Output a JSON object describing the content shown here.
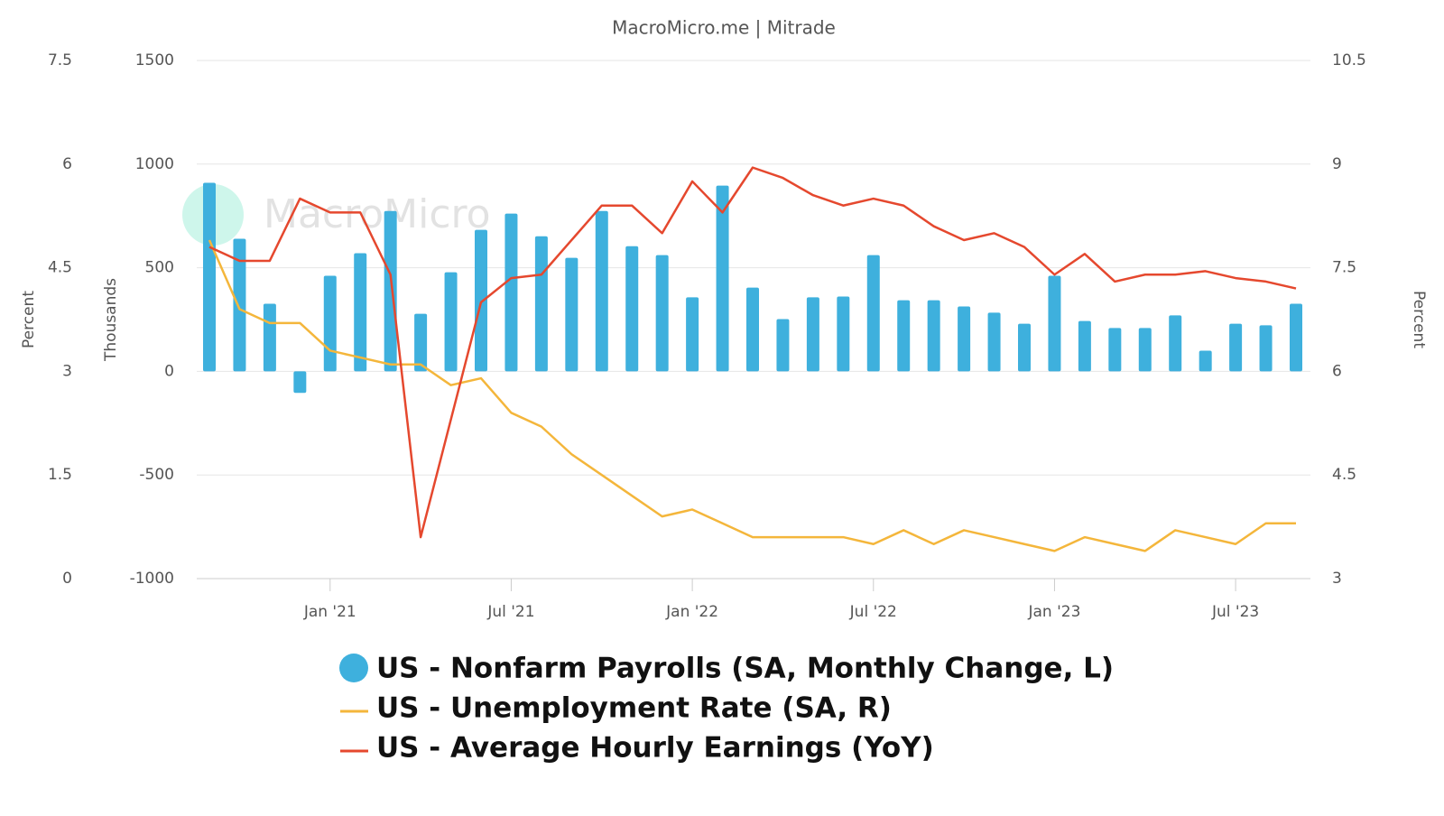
{
  "chart_data": {
    "type": "bar_line",
    "title": "MacroMicro.me | Mitrade",
    "watermark": "MacroMicro",
    "categories": [
      null,
      null,
      null,
      null,
      "Jan '21",
      null,
      null,
      null,
      null,
      null,
      "Jul '21",
      null,
      null,
      null,
      null,
      null,
      "Jan '22",
      null,
      null,
      null,
      null,
      null,
      "Jul '22",
      null,
      null,
      null,
      null,
      null,
      "Jan '23",
      null,
      null,
      null,
      null,
      null,
      "Jul '23",
      null,
      null
    ],
    "y_label": "Thousands",
    "ylim": [
      -1000,
      1500
    ],
    "yticks": [
      -1000,
      -500,
      0,
      500,
      1000,
      1500
    ],
    "y2_label": "Percent",
    "y2lim": [
      3,
      10.5
    ],
    "y2ticks": [
      3,
      4.5,
      6,
      7.5,
      9,
      10.5
    ],
    "y3_label": "Percent",
    "y3lim": [
      0,
      7.5
    ],
    "y3ticks": [
      0,
      1.5,
      3,
      4.5,
      6,
      7.5
    ],
    "grid": true,
    "series": [
      {
        "name": "US - Nonfarm Payrolls (SA, Monthly Change, L)",
        "type": "bar",
        "axis": "y",
        "color": "#3eb0dd",
        "values": [
          910,
          640,
          326,
          -104,
          461,
          570,
          774,
          278,
          478,
          683,
          761,
          652,
          548,
          774,
          604,
          561,
          357,
          896,
          404,
          252,
          357,
          361,
          561,
          343,
          343,
          313,
          283,
          230,
          461,
          243,
          209,
          209,
          270,
          100,
          230,
          222,
          326
        ]
      },
      {
        "name": "US - Unemployment Rate (SA, R)",
        "type": "line",
        "axis": "y2",
        "color": "#f4b63b",
        "values": [
          7.9,
          6.9,
          6.7,
          6.7,
          6.3,
          6.2,
          6.1,
          6.1,
          5.8,
          5.9,
          5.4,
          5.2,
          4.8,
          4.5,
          4.2,
          3.9,
          4.0,
          3.8,
          3.6,
          3.6,
          3.6,
          3.6,
          3.5,
          3.7,
          3.5,
          3.7,
          3.6,
          3.5,
          3.4,
          3.6,
          3.5,
          3.4,
          3.7,
          3.6,
          3.5,
          3.8,
          3.8
        ]
      },
      {
        "name": "US - Average Hourly Earnings (YoY)",
        "type": "line",
        "axis": "y3",
        "color": "#e5482e",
        "values": [
          4.8,
          4.6,
          4.6,
          5.5,
          5.3,
          5.3,
          4.4,
          0.6,
          2.3,
          4.0,
          4.35,
          4.4,
          4.9,
          5.4,
          5.4,
          5.0,
          5.75,
          5.3,
          5.95,
          5.8,
          5.55,
          5.4,
          5.5,
          5.4,
          5.1,
          4.9,
          5.0,
          4.8,
          4.4,
          4.7,
          4.3,
          4.4,
          4.4,
          4.45,
          4.35,
          4.3,
          4.2
        ]
      }
    ]
  }
}
